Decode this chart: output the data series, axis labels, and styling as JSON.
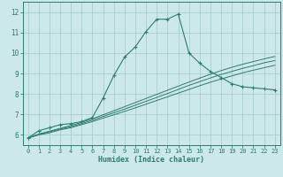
{
  "xlabel": "Humidex (Indice chaleur)",
  "bg_color": "#cce8e8",
  "grid_color": "#aacfcf",
  "line_color": "#2e7d6e",
  "xlim": [
    -0.5,
    23.5
  ],
  "ylim": [
    5.5,
    12.5
  ],
  "xticks": [
    0,
    1,
    2,
    3,
    4,
    5,
    6,
    7,
    8,
    9,
    10,
    11,
    12,
    13,
    14,
    15,
    16,
    17,
    18,
    19,
    20,
    21,
    22,
    23
  ],
  "yticks": [
    6,
    7,
    8,
    9,
    10,
    11,
    12
  ],
  "series": [
    {
      "x": [
        0,
        1,
        2,
        3,
        4,
        5,
        6,
        7,
        8,
        9,
        10,
        11,
        12,
        13,
        14,
        15,
        16,
        17,
        18,
        19,
        20,
        21,
        22,
        23
      ],
      "y": [
        5.85,
        6.2,
        6.35,
        6.5,
        6.55,
        6.65,
        6.85,
        7.8,
        8.9,
        9.8,
        10.3,
        11.05,
        11.65,
        11.65,
        11.9,
        10.0,
        9.5,
        9.1,
        8.8,
        8.5,
        8.35,
        8.3,
        8.25,
        8.2
      ],
      "marker": "+"
    },
    {
      "x": [
        0,
        1,
        2,
        3,
        4,
        5,
        6,
        7,
        8,
        9,
        10,
        11,
        12,
        13,
        14,
        15,
        16,
        17,
        18,
        19,
        20,
        21,
        22,
        23
      ],
      "y": [
        5.85,
        6.0,
        6.1,
        6.25,
        6.35,
        6.5,
        6.65,
        6.82,
        6.98,
        7.15,
        7.32,
        7.5,
        7.68,
        7.86,
        8.04,
        8.22,
        8.4,
        8.57,
        8.73,
        8.88,
        9.03,
        9.16,
        9.28,
        9.4
      ],
      "marker": null
    },
    {
      "x": [
        0,
        1,
        2,
        3,
        4,
        5,
        6,
        7,
        8,
        9,
        10,
        11,
        12,
        13,
        14,
        15,
        16,
        17,
        18,
        19,
        20,
        21,
        22,
        23
      ],
      "y": [
        5.85,
        6.02,
        6.15,
        6.28,
        6.4,
        6.55,
        6.72,
        6.9,
        7.08,
        7.26,
        7.45,
        7.64,
        7.83,
        8.02,
        8.22,
        8.42,
        8.6,
        8.78,
        8.95,
        9.1,
        9.25,
        9.38,
        9.52,
        9.63
      ],
      "marker": null
    },
    {
      "x": [
        0,
        1,
        2,
        3,
        4,
        5,
        6,
        7,
        8,
        9,
        10,
        11,
        12,
        13,
        14,
        15,
        16,
        17,
        18,
        19,
        20,
        21,
        22,
        23
      ],
      "y": [
        5.85,
        6.04,
        6.18,
        6.32,
        6.46,
        6.61,
        6.79,
        6.98,
        7.18,
        7.38,
        7.58,
        7.78,
        7.98,
        8.18,
        8.38,
        8.58,
        8.77,
        8.96,
        9.14,
        9.3,
        9.45,
        9.58,
        9.71,
        9.83
      ],
      "marker": null
    }
  ]
}
